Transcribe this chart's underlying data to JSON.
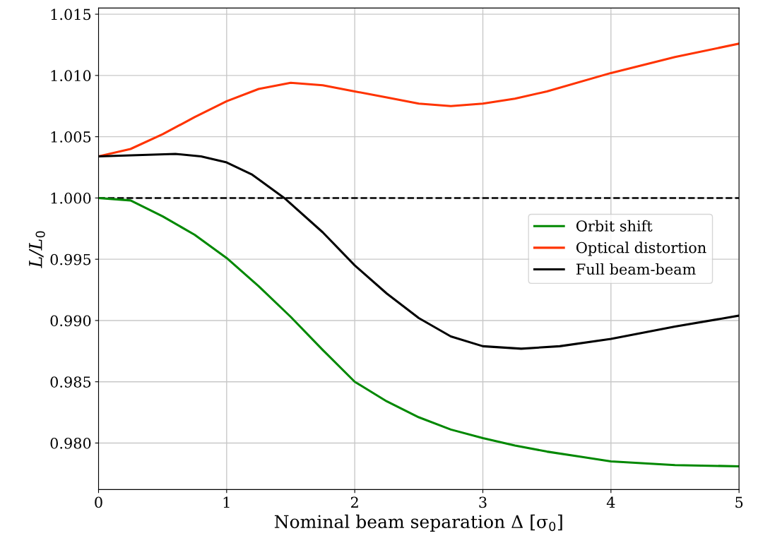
{
  "chart_data": {
    "type": "line",
    "xlabel": "Nominal beam separation Δ [σ$_{0}$]",
    "ylabel": "L/L$_{0}$",
    "xlim": [
      0,
      5
    ],
    "xticks": [
      0,
      1,
      2,
      3,
      4,
      5
    ],
    "ylim": [
      0.9762,
      1.0155
    ],
    "yticks": [
      {
        "value": 0.98,
        "label": "0.980"
      },
      {
        "value": 0.985,
        "label": "0.985"
      },
      {
        "value": 0.99,
        "label": "0.990"
      },
      {
        "value": 0.995,
        "label": "0.995"
      },
      {
        "value": 1.0,
        "label": "1.000"
      },
      {
        "value": 1.005,
        "label": "1.005"
      },
      {
        "value": 1.01,
        "label": "1.010"
      },
      {
        "value": 1.015,
        "label": "1.015"
      }
    ],
    "grid": true,
    "legend": "center right",
    "line_style": "solid",
    "marker": "none",
    "ref_lines": [
      {
        "axis": "y",
        "value": 1.0,
        "color": "#000000",
        "line_style": "dashed"
      }
    ],
    "series": [
      {
        "name": "Orbit shift",
        "color": "#008800",
        "x": [
          0,
          0.25,
          0.5,
          0.75,
          1.0,
          1.25,
          1.5,
          1.75,
          2.0,
          2.25,
          2.5,
          2.75,
          3.0,
          3.25,
          3.5,
          3.75,
          4.0,
          4.5,
          5.0
        ],
        "values": [
          1.0,
          0.9998,
          0.9985,
          0.997,
          0.9951,
          0.9928,
          0.9903,
          0.9876,
          0.985,
          0.9834,
          0.9821,
          0.9811,
          0.9804,
          0.9798,
          0.9793,
          0.9789,
          0.9785,
          0.9782,
          0.9781
        ]
      },
      {
        "name": "Optical distortion",
        "color": "#ff3300",
        "x": [
          0,
          0.25,
          0.5,
          0.75,
          1.0,
          1.25,
          1.5,
          1.75,
          2.0,
          2.25,
          2.5,
          2.75,
          3.0,
          3.25,
          3.5,
          4.0,
          4.5,
          5.0
        ],
        "values": [
          1.0034,
          1.004,
          1.0052,
          1.0066,
          1.0079,
          1.0089,
          1.0094,
          1.0092,
          1.0087,
          1.0082,
          1.0077,
          1.0075,
          1.0077,
          1.0081,
          1.0087,
          1.0102,
          1.0115,
          1.0126
        ]
      },
      {
        "name": "Full beam-beam",
        "color": "#000000",
        "x": [
          0,
          0.3,
          0.6,
          0.8,
          1.0,
          1.2,
          1.45,
          1.75,
          2.0,
          2.25,
          2.5,
          2.75,
          3.0,
          3.3,
          3.6,
          4.0,
          4.5,
          5.0
        ],
        "values": [
          1.0034,
          1.0035,
          1.0036,
          1.0034,
          1.0029,
          1.0019,
          1.0,
          0.9972,
          0.9945,
          0.9922,
          0.9902,
          0.9887,
          0.9879,
          0.9877,
          0.9879,
          0.9885,
          0.9895,
          0.9904
        ]
      }
    ]
  }
}
